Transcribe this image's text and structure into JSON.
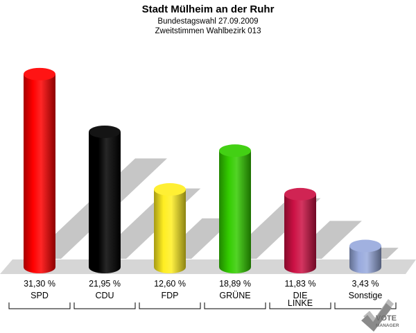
{
  "header": {
    "title": "Stadt Mülheim an der Ruhr",
    "subtitle1": "Bundestagswahl 27.09.2009",
    "subtitle2": "Zweitstimmen Wahlbezirk 013"
  },
  "logo": {
    "line1": "VOTE",
    "line2": "MANAGER"
  },
  "chart_data": {
    "type": "bar",
    "title": "Stadt Mülheim an der Ruhr",
    "subtitle": "Bundestagswahl 27.09.2009 / Zweitstimmen Wahlbezirk 013",
    "unit": "%",
    "ylim": [
      0,
      35
    ],
    "grid": false,
    "legend": "none",
    "categories": [
      "SPD",
      "CDU",
      "FDP",
      "GRÜNE",
      "DIE LINKE",
      "Sonstige"
    ],
    "category_lines": [
      [
        "SPD"
      ],
      [
        "CDU"
      ],
      [
        "FDP"
      ],
      [
        "GRÜNE"
      ],
      [
        "DIE",
        "LINKE"
      ],
      [
        "Sonstige"
      ]
    ],
    "values": [
      31.3,
      21.95,
      12.6,
      18.89,
      11.83,
      3.43
    ],
    "value_labels": [
      "31,30 %",
      "21,95 %",
      "12,60 %",
      "18,89 %",
      "11,83 %",
      "3,43 %"
    ],
    "colors": [
      "#ff0000",
      "#000000",
      "#ffee22",
      "#33cc00",
      "#cc1144",
      "#99aadd"
    ]
  }
}
